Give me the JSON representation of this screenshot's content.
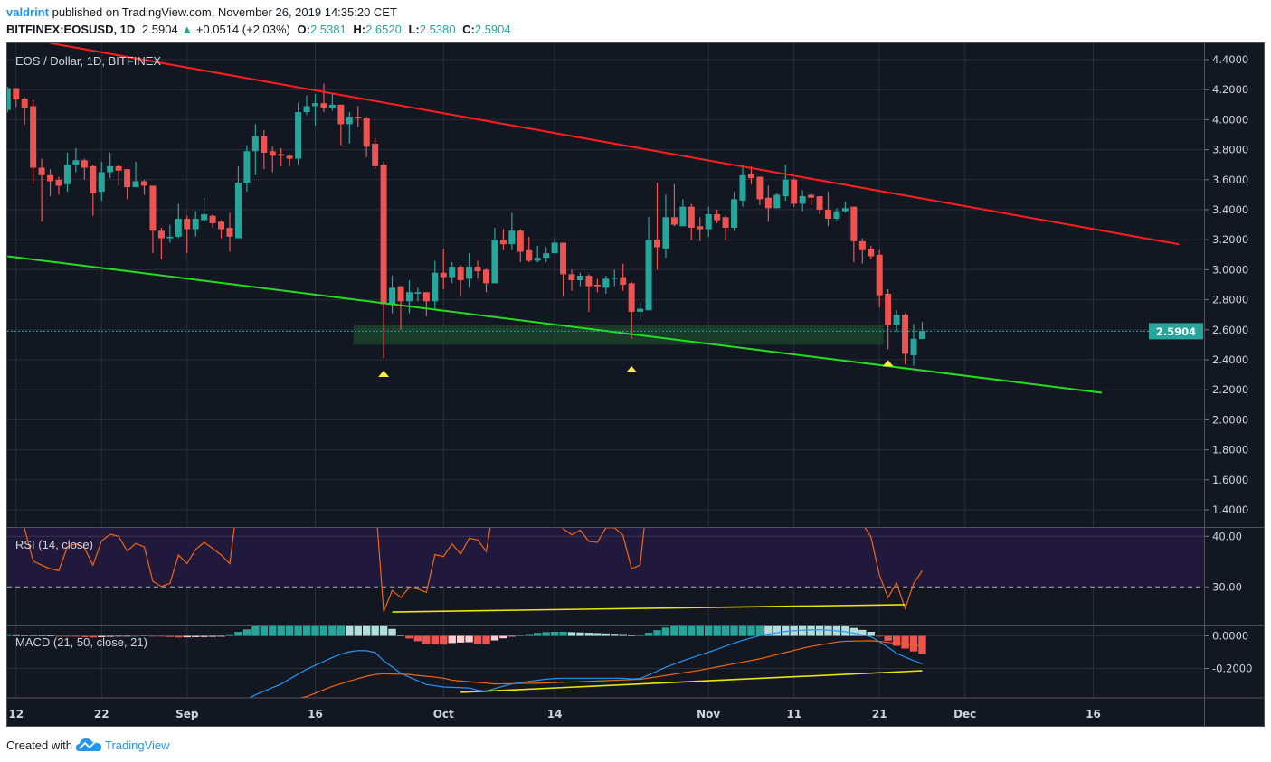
{
  "header": {
    "author": "valdrint",
    "published_text": "published on TradingView.com, November 26, 2019 14:35:20 CET",
    "symbol": "BITFINEX:EOSUSD, 1D",
    "last": "2.5904",
    "direction_icon": "triangle-up-icon",
    "change": "+0.0514 (+2.03%)",
    "open_label": "O:",
    "open": "2.5381",
    "high_label": "H:",
    "high": "2.6520",
    "low_label": "L:",
    "low": "2.5380",
    "close_label": "C:",
    "close": "2.5904"
  },
  "footer": {
    "created_with": "Created with",
    "brand": "TradingView",
    "logo_icon": "tradingview-cloud-logo"
  },
  "chart_data": {
    "type": "candlestick",
    "title": "EOS / Dollar, 1D, BITFINEX",
    "colors": {
      "up": "#26a69a",
      "down": "#ef5350",
      "background": "#131722",
      "grid": "#2a2e39"
    },
    "grid": true,
    "price_axis": {
      "range": [
        1.3,
        4.51
      ],
      "ticks": [
        "4.4000",
        "4.2000",
        "4.0000",
        "3.8000",
        "3.6000",
        "3.4000",
        "3.2000",
        "3.0000",
        "2.8000",
        "2.6000",
        "2.4000",
        "2.2000",
        "2.0000",
        "1.8000",
        "1.6000",
        "1.4000"
      ],
      "current_price": "2.5904"
    },
    "x_ticks": [
      {
        "label": "12",
        "date": "2019-08-12"
      },
      {
        "label": "22",
        "date": "2019-08-22"
      },
      {
        "label": "Sep",
        "date": "2019-09-01"
      },
      {
        "label": "16",
        "date": "2019-09-16"
      },
      {
        "label": "Oct",
        "date": "2019-10-01"
      },
      {
        "label": "14",
        "date": "2019-10-14"
      },
      {
        "label": "Nov",
        "date": "2019-11-01"
      },
      {
        "label": "11",
        "date": "2019-11-11"
      },
      {
        "label": "21",
        "date": "2019-11-21"
      },
      {
        "label": "Dec",
        "date": "2019-12-01"
      },
      {
        "label": "16",
        "date": "2019-12-16"
      }
    ],
    "candle_fields": [
      "date",
      "open",
      "high",
      "low",
      "close"
    ],
    "candles": [
      [
        "2019-08-11",
        4.065,
        4.22,
        4.05,
        4.21
      ],
      [
        "2019-08-12",
        4.21,
        4.21,
        4.085,
        4.135
      ],
      [
        "2019-08-13",
        4.14,
        4.15,
        3.965,
        4.075
      ],
      [
        "2019-08-14",
        4.09,
        4.13,
        3.57,
        3.68
      ],
      [
        "2019-08-15",
        3.68,
        3.74,
        3.32,
        3.63
      ],
      [
        "2019-08-16",
        3.63,
        3.67,
        3.49,
        3.59
      ],
      [
        "2019-08-17",
        3.6,
        3.62,
        3.5,
        3.56
      ],
      [
        "2019-08-18",
        3.57,
        3.78,
        3.52,
        3.7
      ],
      [
        "2019-08-19",
        3.7,
        3.81,
        3.65,
        3.73
      ],
      [
        "2019-08-20",
        3.73,
        3.74,
        3.6,
        3.68
      ],
      [
        "2019-08-21",
        3.69,
        3.7,
        3.36,
        3.51
      ],
      [
        "2019-08-22",
        3.52,
        3.72,
        3.46,
        3.65
      ],
      [
        "2019-08-23",
        3.65,
        3.78,
        3.61,
        3.69
      ],
      [
        "2019-08-24",
        3.69,
        3.7,
        3.56,
        3.66
      ],
      [
        "2019-08-25",
        3.67,
        3.67,
        3.47,
        3.55
      ],
      [
        "2019-08-26",
        3.55,
        3.72,
        3.55,
        3.59
      ],
      [
        "2019-08-27",
        3.59,
        3.6,
        3.5,
        3.56
      ],
      [
        "2019-08-28",
        3.56,
        3.56,
        3.11,
        3.26
      ],
      [
        "2019-08-29",
        3.26,
        3.28,
        3.07,
        3.21
      ],
      [
        "2019-08-30",
        3.21,
        3.3,
        3.18,
        3.22
      ],
      [
        "2019-08-31",
        3.22,
        3.44,
        3.21,
        3.34
      ],
      [
        "2019-09-01",
        3.34,
        3.36,
        3.11,
        3.27
      ],
      [
        "2019-09-02",
        3.27,
        3.39,
        3.22,
        3.34
      ],
      [
        "2019-09-03",
        3.33,
        3.48,
        3.32,
        3.37
      ],
      [
        "2019-09-04",
        3.36,
        3.37,
        3.28,
        3.31
      ],
      [
        "2019-09-05",
        3.32,
        3.33,
        3.21,
        3.27
      ],
      [
        "2019-09-06",
        3.28,
        3.38,
        3.12,
        3.22
      ],
      [
        "2019-09-07",
        3.21,
        3.69,
        3.21,
        3.58
      ],
      [
        "2019-09-08",
        3.58,
        3.83,
        3.52,
        3.79
      ],
      [
        "2019-09-09",
        3.79,
        3.97,
        3.63,
        3.89
      ],
      [
        "2019-09-10",
        3.89,
        3.93,
        3.67,
        3.78
      ],
      [
        "2019-09-11",
        3.79,
        3.82,
        3.65,
        3.76
      ],
      [
        "2019-09-12",
        3.77,
        3.81,
        3.69,
        3.76
      ],
      [
        "2019-09-13",
        3.76,
        3.77,
        3.69,
        3.74
      ],
      [
        "2019-09-14",
        3.74,
        4.11,
        3.7,
        4.05
      ],
      [
        "2019-09-15",
        4.05,
        4.16,
        4.03,
        4.09
      ],
      [
        "2019-09-16",
        4.09,
        4.17,
        3.96,
        4.11
      ],
      [
        "2019-09-17",
        4.11,
        4.24,
        4.05,
        4.08
      ],
      [
        "2019-09-18",
        4.08,
        4.18,
        4.06,
        4.1
      ],
      [
        "2019-09-19",
        4.1,
        4.1,
        3.83,
        3.97
      ],
      [
        "2019-09-20",
        3.97,
        4.05,
        3.84,
        4.02
      ],
      [
        "2019-09-21",
        4.02,
        4.09,
        3.95,
        4.01
      ],
      [
        "2019-09-22",
        4.01,
        4.02,
        3.75,
        3.82
      ],
      [
        "2019-09-23",
        3.84,
        3.88,
        3.67,
        3.69
      ],
      [
        "2019-09-24",
        3.7,
        3.72,
        2.41,
        2.77
      ],
      [
        "2019-09-25",
        2.77,
        2.96,
        2.71,
        2.88
      ],
      [
        "2019-09-26",
        2.89,
        2.89,
        2.6,
        2.79
      ],
      [
        "2019-09-27",
        2.79,
        2.93,
        2.71,
        2.85
      ],
      [
        "2019-09-28",
        2.84,
        2.88,
        2.79,
        2.85
      ],
      [
        "2019-09-29",
        2.85,
        2.85,
        2.69,
        2.79
      ],
      [
        "2019-09-30",
        2.79,
        3.06,
        2.74,
        2.98
      ],
      [
        "2019-10-01",
        2.98,
        3.14,
        2.87,
        2.95
      ],
      [
        "2019-10-02",
        2.95,
        3.05,
        2.91,
        3.02
      ],
      [
        "2019-10-03",
        3.02,
        3.03,
        2.82,
        2.93
      ],
      [
        "2019-10-04",
        2.94,
        3.11,
        2.88,
        3.02
      ],
      [
        "2019-10-05",
        3.02,
        3.06,
        2.94,
        2.99
      ],
      [
        "2019-10-06",
        3.0,
        3.01,
        2.85,
        2.91
      ],
      [
        "2019-10-07",
        2.91,
        3.28,
        2.91,
        3.2
      ],
      [
        "2019-10-08",
        3.2,
        3.27,
        3.13,
        3.17
      ],
      [
        "2019-10-09",
        3.17,
        3.38,
        3.13,
        3.26
      ],
      [
        "2019-10-10",
        3.26,
        3.27,
        3.05,
        3.12
      ],
      [
        "2019-10-11",
        3.13,
        3.22,
        3.05,
        3.06
      ],
      [
        "2019-10-12",
        3.06,
        3.16,
        3.05,
        3.08
      ],
      [
        "2019-10-13",
        3.08,
        3.15,
        3.05,
        3.11
      ],
      [
        "2019-10-14",
        3.11,
        3.21,
        3.11,
        3.18
      ],
      [
        "2019-10-15",
        3.18,
        3.18,
        2.82,
        2.97
      ],
      [
        "2019-10-16",
        2.97,
        3.0,
        2.86,
        2.93
      ],
      [
        "2019-10-17",
        2.93,
        2.98,
        2.89,
        2.96
      ],
      [
        "2019-10-18",
        2.96,
        2.97,
        2.72,
        2.89
      ],
      [
        "2019-10-19",
        2.9,
        2.94,
        2.85,
        2.89
      ],
      [
        "2019-10-20",
        2.88,
        2.96,
        2.84,
        2.94
      ],
      [
        "2019-10-21",
        2.94,
        3.0,
        2.89,
        2.945
      ],
      [
        "2019-10-22",
        2.95,
        3.04,
        2.86,
        2.9
      ],
      [
        "2019-10-23",
        2.91,
        2.92,
        2.54,
        2.72
      ],
      [
        "2019-10-24",
        2.72,
        2.79,
        2.66,
        2.74
      ],
      [
        "2019-10-25",
        2.73,
        3.35,
        2.73,
        3.2
      ],
      [
        "2019-10-26",
        3.2,
        3.58,
        3.0,
        3.15
      ],
      [
        "2019-10-27",
        3.14,
        3.5,
        3.08,
        3.35
      ],
      [
        "2019-10-28",
        3.35,
        3.57,
        3.29,
        3.3
      ],
      [
        "2019-10-29",
        3.29,
        3.47,
        3.29,
        3.42
      ],
      [
        "2019-10-30",
        3.42,
        3.44,
        3.2,
        3.28
      ],
      [
        "2019-10-31",
        3.29,
        3.35,
        3.19,
        3.27
      ],
      [
        "2019-11-01",
        3.27,
        3.42,
        3.22,
        3.37
      ],
      [
        "2019-11-02",
        3.37,
        3.4,
        3.31,
        3.33
      ],
      [
        "2019-11-03",
        3.35,
        3.36,
        3.2,
        3.28
      ],
      [
        "2019-11-04",
        3.28,
        3.52,
        3.26,
        3.47
      ],
      [
        "2019-11-05",
        3.46,
        3.7,
        3.42,
        3.63
      ],
      [
        "2019-11-06",
        3.64,
        3.69,
        3.57,
        3.61
      ],
      [
        "2019-11-07",
        3.62,
        3.62,
        3.43,
        3.47
      ],
      [
        "2019-11-08",
        3.48,
        3.56,
        3.32,
        3.41
      ],
      [
        "2019-11-09",
        3.41,
        3.51,
        3.41,
        3.5
      ],
      [
        "2019-11-10",
        3.49,
        3.7,
        3.46,
        3.6
      ],
      [
        "2019-11-11",
        3.6,
        3.61,
        3.42,
        3.44
      ],
      [
        "2019-11-12",
        3.44,
        3.53,
        3.39,
        3.49
      ],
      [
        "2019-11-13",
        3.5,
        3.51,
        3.43,
        3.48
      ],
      [
        "2019-11-14",
        3.49,
        3.49,
        3.37,
        3.4
      ],
      [
        "2019-11-15",
        3.4,
        3.52,
        3.29,
        3.34
      ],
      [
        "2019-11-16",
        3.34,
        3.41,
        3.33,
        3.39
      ],
      [
        "2019-11-17",
        3.39,
        3.45,
        3.38,
        3.41
      ],
      [
        "2019-11-18",
        3.42,
        3.42,
        3.05,
        3.19
      ],
      [
        "2019-11-19",
        3.19,
        3.21,
        3.04,
        3.13
      ],
      [
        "2019-11-20",
        3.14,
        3.16,
        3.07,
        3.09
      ],
      [
        "2019-11-21",
        3.1,
        3.13,
        2.75,
        2.83
      ],
      [
        "2019-11-22",
        2.84,
        2.87,
        2.47,
        2.63
      ],
      [
        "2019-11-23",
        2.63,
        2.73,
        2.59,
        2.7
      ],
      [
        "2019-11-24",
        2.7,
        2.71,
        2.37,
        2.44
      ],
      [
        "2019-11-25",
        2.43,
        2.64,
        2.36,
        2.54
      ],
      [
        "2019-11-26",
        2.5381,
        2.652,
        2.538,
        2.5904
      ]
    ],
    "drawings": {
      "resistance_line": {
        "color": "#ff1f1f",
        "from": [
          "2019-08-16",
          4.51
        ],
        "to": [
          "2019-12-26",
          3.17
        ]
      },
      "support_line": {
        "color": "#22e01f",
        "from": [
          "2019-08-11",
          3.09
        ],
        "to": [
          "2019-12-17",
          2.18
        ]
      },
      "support_zone": {
        "color": "#1f5a2c",
        "from_date": "2019-09-21",
        "to_date": "2019-11-22",
        "low": 2.5,
        "high": 2.635
      },
      "markers": {
        "color": "#ffeb3b",
        "icon": "triangle-up-icon",
        "points": [
          [
            "2019-09-24",
            2.31
          ],
          [
            "2019-10-23",
            2.34
          ],
          [
            "2019-11-22",
            2.38
          ]
        ]
      }
    },
    "rsi": {
      "label": "RSI (14, close)",
      "color": "#f0660f",
      "band_color": "#21193b",
      "ticks": [
        "40.00",
        "30.00"
      ],
      "values": [
        50,
        45,
        41.5,
        35.1,
        34.3,
        33.6,
        33.2,
        37.9,
        38.5,
        37.7,
        34.3,
        39.1,
        40.4,
        40.0,
        37.1,
        38.6,
        37.9,
        31.1,
        30.1,
        30.7,
        36.3,
        34.6,
        37.4,
        38.8,
        37.6,
        36.3,
        34.6,
        48,
        55,
        58,
        55,
        54,
        54,
        53,
        62,
        63,
        63,
        62,
        63,
        58,
        60,
        59,
        52,
        48,
        25.1,
        29.3,
        27.9,
        29.9,
        29.6,
        28.9,
        36.4,
        36.0,
        38.5,
        36.5,
        39.6,
        39.3,
        37.0,
        47,
        46,
        49,
        44,
        43,
        43.5,
        44,
        46,
        41.5,
        40.3,
        41.2,
        39.0,
        38.8,
        41.7,
        41.7,
        40.2,
        33.6,
        34.3,
        50,
        49,
        53,
        52,
        54,
        51,
        50,
        52,
        51,
        50,
        54,
        58,
        57,
        53,
        51,
        53,
        56,
        51,
        52,
        52,
        50,
        48,
        49,
        50,
        44,
        42.5,
        39.9,
        32.3,
        27.9,
        30.8,
        25.7,
        30.7,
        33.2
      ],
      "divergence_line": {
        "color": "#e8e800",
        "from": [
          "2019-09-25",
          25.05
        ],
        "to": [
          "2019-11-24",
          26.5
        ]
      }
    },
    "macd": {
      "label": "MACD (21, 50, close, 21)",
      "macd_color": "#2196f3",
      "signal_color": "#f0660f",
      "histogram_colors": {
        "up_rising": "#26a69a",
        "up_falling": "#b2dfdb",
        "down_falling": "#ef5350",
        "down_rising": "#ffcdd2"
      },
      "ticks": [
        "0.0000",
        "-0.2000"
      ],
      "macd": [
        -0.4,
        -0.402,
        -0.405,
        -0.408,
        -0.41,
        -0.413,
        -0.417,
        -0.42,
        -0.423,
        -0.427,
        -0.43,
        -0.43,
        -0.43,
        -0.43,
        -0.43,
        -0.43,
        -0.43,
        -0.435,
        -0.44,
        -0.445,
        -0.45,
        -0.448,
        -0.446,
        -0.444,
        -0.442,
        -0.44,
        -0.423,
        -0.407,
        -0.39,
        -0.362,
        -0.34,
        -0.318,
        -0.296,
        -0.265,
        -0.235,
        -0.205,
        -0.181,
        -0.157,
        -0.133,
        -0.112,
        -0.098,
        -0.09,
        -0.091,
        -0.102,
        -0.153,
        -0.191,
        -0.229,
        -0.253,
        -0.276,
        -0.299,
        -0.306,
        -0.314,
        -0.316,
        -0.318,
        -0.32,
        -0.334,
        -0.34,
        -0.323,
        -0.309,
        -0.295,
        -0.287,
        -0.28,
        -0.273,
        -0.266,
        -0.262,
        -0.26,
        -0.26,
        -0.26,
        -0.26,
        -0.26,
        -0.26,
        -0.26,
        -0.26,
        -0.265,
        -0.262,
        -0.24,
        -0.216,
        -0.192,
        -0.173,
        -0.153,
        -0.135,
        -0.118,
        -0.1,
        -0.082,
        -0.063,
        -0.045,
        -0.027,
        -0.013,
        0.001,
        0.011,
        0.019,
        0.027,
        0.032,
        0.035,
        0.037,
        0.038,
        0.035,
        0.031,
        0.026,
        0.017,
        0.006,
        -0.005,
        -0.036,
        -0.07,
        -0.107,
        -0.13,
        -0.152,
        -0.172
      ],
      "signal": [
        -0.41,
        -0.411,
        -0.412,
        -0.413,
        -0.414,
        -0.415,
        -0.416,
        -0.417,
        -0.418,
        -0.419,
        -0.42,
        -0.422,
        -0.424,
        -0.426,
        -0.428,
        -0.43,
        -0.432,
        -0.434,
        -0.436,
        -0.438,
        -0.44,
        -0.439,
        -0.438,
        -0.437,
        -0.436,
        -0.435,
        -0.433,
        -0.432,
        -0.43,
        -0.422,
        -0.414,
        -0.406,
        -0.398,
        -0.391,
        -0.383,
        -0.373,
        -0.352,
        -0.331,
        -0.31,
        -0.294,
        -0.278,
        -0.262,
        -0.248,
        -0.237,
        -0.232,
        -0.234,
        -0.235,
        -0.237,
        -0.243,
        -0.248,
        -0.253,
        -0.26,
        -0.272,
        -0.277,
        -0.281,
        -0.286,
        -0.29,
        -0.295,
        -0.294,
        -0.293,
        -0.292,
        -0.291,
        -0.291,
        -0.289,
        -0.287,
        -0.285,
        -0.283,
        -0.281,
        -0.279,
        -0.277,
        -0.275,
        -0.273,
        -0.271,
        -0.269,
        -0.267,
        -0.259,
        -0.251,
        -0.243,
        -0.235,
        -0.227,
        -0.219,
        -0.211,
        -0.201,
        -0.191,
        -0.181,
        -0.171,
        -0.161,
        -0.151,
        -0.141,
        -0.128,
        -0.115,
        -0.102,
        -0.089,
        -0.076,
        -0.065,
        -0.056,
        -0.047,
        -0.038,
        -0.033,
        -0.032,
        -0.031,
        -0.03,
        -0.034,
        -0.04,
        -0.046,
        -0.052,
        -0.057,
        -0.063
      ],
      "divergence_line": {
        "color": "#e8e800",
        "from": [
          "2019-10-03",
          -0.347
        ],
        "to": [
          "2019-11-26",
          -0.214
        ]
      }
    }
  }
}
